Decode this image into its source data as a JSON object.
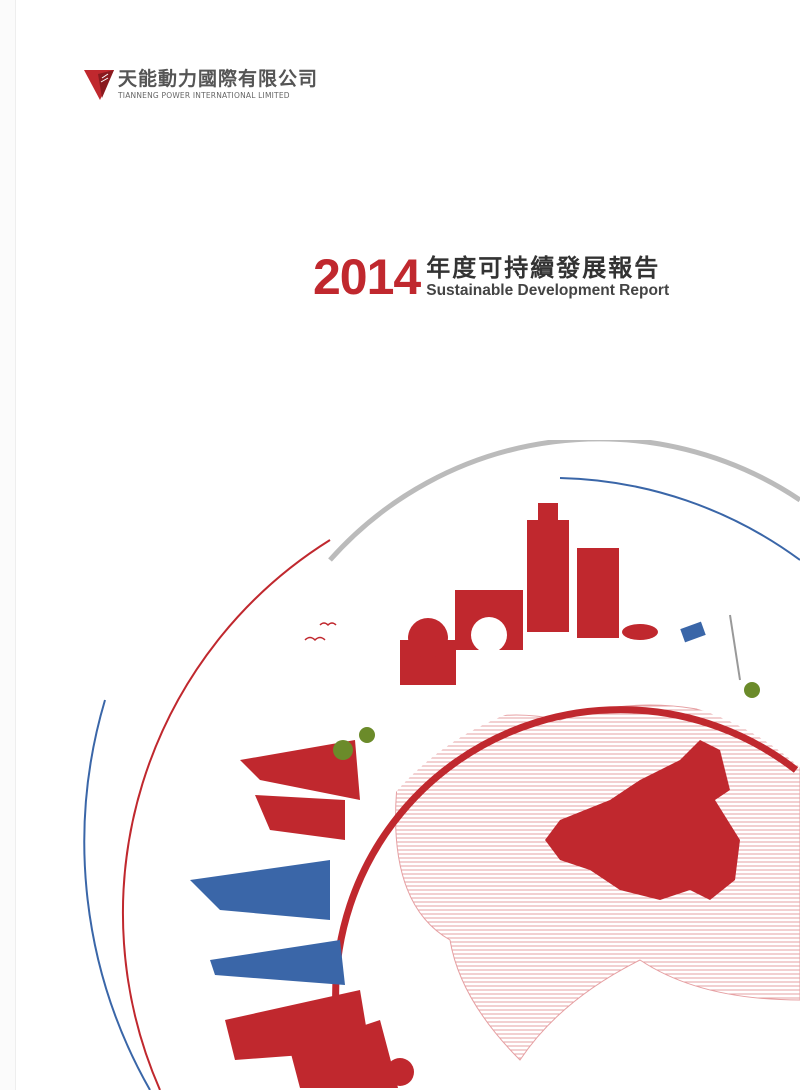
{
  "company": {
    "name_cn": "天能動力國際有限公司",
    "name_en": "TIANNENG POWER INTERNATIONAL LIMITED"
  },
  "report": {
    "year": "2014",
    "title_cn": "年度可持續發展報告",
    "title_en": "Sustainable Development Report"
  },
  "colors": {
    "brand_red": "#c0282e",
    "blue": "#3a66a8",
    "grey": "#bbbbbb"
  }
}
